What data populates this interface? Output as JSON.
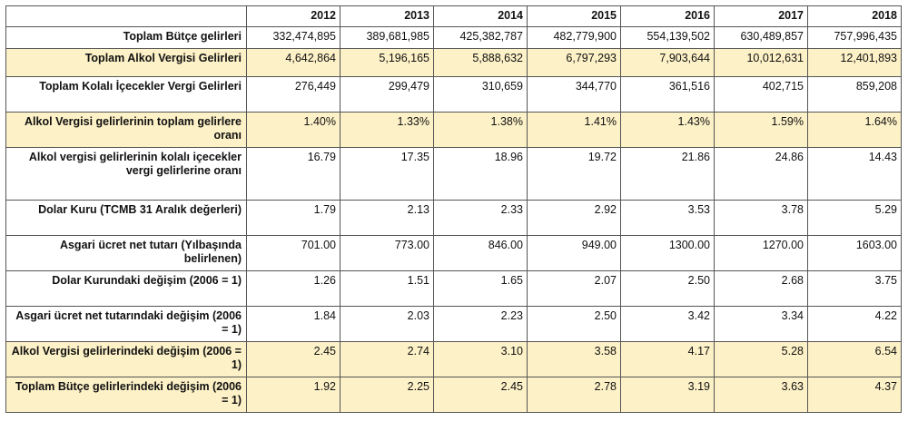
{
  "years": [
    "2012",
    "2013",
    "2014",
    "2015",
    "2016",
    "2017",
    "2018"
  ],
  "rows": [
    {
      "label": "Toplam Bütçe gelirleri",
      "highlight": false,
      "values": [
        "332,474,895",
        "389,681,985",
        "425,382,787",
        "482,779,900",
        "554,139,502",
        "630,489,857",
        "757,996,435"
      ]
    },
    {
      "label": "Toplam Alkol Vergisi Gelirleri",
      "highlight": true,
      "values": [
        "4,642,864",
        "5,196,165",
        "5,888,632",
        "6,797,293",
        "7,903,644",
        "10,012,631",
        "12,401,893"
      ]
    },
    {
      "label": "Toplam Kolalı İçecekler Vergi Gelirleri",
      "highlight": false,
      "values": [
        "276,449",
        "299,479",
        "310,659",
        "344,770",
        "361,516",
        "402,715",
        "859,208"
      ]
    },
    {
      "label": "Alkol Vergisi gelirlerinin toplam gelirlere oranı",
      "highlight": true,
      "values": [
        "1.40%",
        "1.33%",
        "1.38%",
        "1.41%",
        "1.43%",
        "1.59%",
        "1.64%"
      ]
    },
    {
      "label": "Alkol vergisi gelirlerinin kolalı içecekler vergi gelirlerine oranı",
      "highlight": false,
      "values": [
        "16.79",
        "17.35",
        "18.96",
        "19.72",
        "21.86",
        "24.86",
        "14.43"
      ]
    },
    {
      "label": "Dolar Kuru (TCMB 31 Aralık değerleri)",
      "highlight": false,
      "values": [
        "1.79",
        "2.13",
        "2.33",
        "2.92",
        "3.53",
        "3.78",
        "5.29"
      ]
    },
    {
      "label": "Asgari ücret net tutarı (Yılbaşında belirlenen)",
      "highlight": false,
      "values": [
        "701.00",
        "773.00",
        "846.00",
        "949.00",
        "1300.00",
        "1270.00",
        "1603.00"
      ]
    },
    {
      "label": "Dolar Kurundaki değişim (2006 = 1)",
      "highlight": false,
      "values": [
        "1.26",
        "1.51",
        "1.65",
        "2.07",
        "2.50",
        "2.68",
        "3.75"
      ]
    },
    {
      "label": "Asgari ücret net tutarındaki değişim (2006 = 1)",
      "highlight": false,
      "values": [
        "1.84",
        "2.03",
        "2.23",
        "2.50",
        "3.42",
        "3.34",
        "4.22"
      ]
    },
    {
      "label": "Alkol Vergisi gelirlerindeki değişim (2006 = 1)",
      "highlight": true,
      "values": [
        "2.45",
        "2.74",
        "3.10",
        "3.58",
        "4.17",
        "5.28",
        "6.54"
      ]
    },
    {
      "label": "Toplam Bütçe gelirlerindeki değişim (2006 = 1)",
      "highlight": true,
      "values": [
        "1.92",
        "2.25",
        "2.45",
        "2.78",
        "3.19",
        "3.63",
        "4.37"
      ]
    }
  ]
}
